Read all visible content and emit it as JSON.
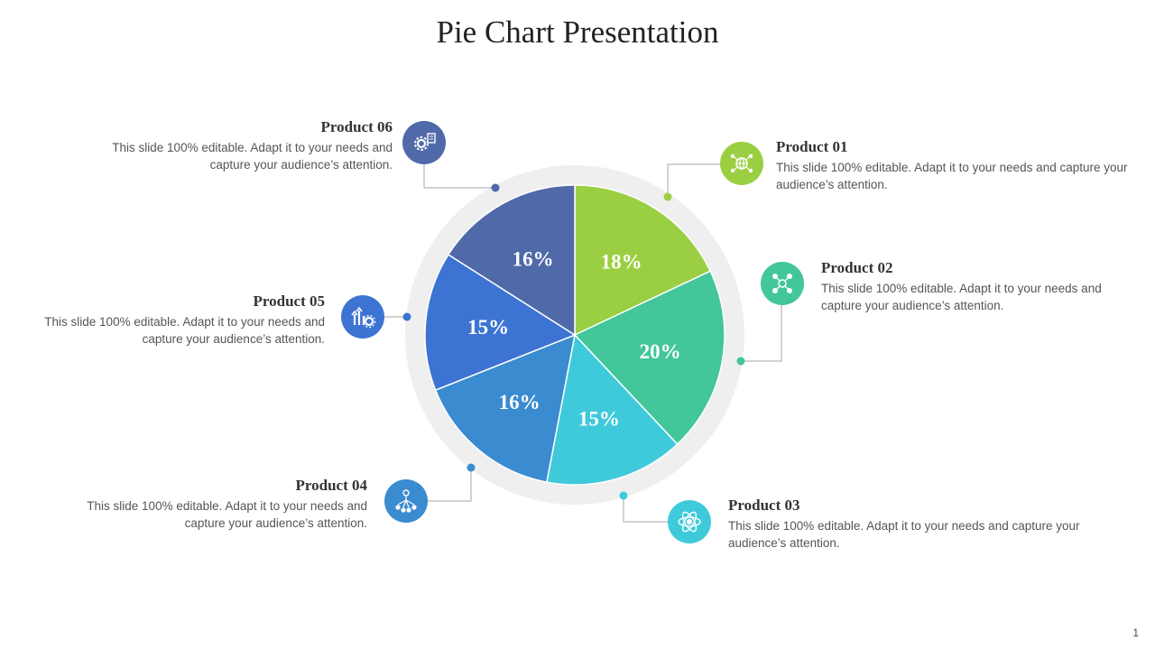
{
  "slide": {
    "title": "Pie Chart Presentation",
    "page_number": "1"
  },
  "colors": {
    "product_01": "#9BCF43",
    "product_02": "#42C69A",
    "product_03": "#3FCADB",
    "product_04": "#3A8BCF",
    "product_05": "#3D74D3",
    "product_06": "#4F69A9",
    "ring": "#EFEFEF",
    "connector": "#A6A6A6"
  },
  "products": [
    {
      "key": "p01",
      "title": "Product 01",
      "description": "This slide 100% editable. Adapt it to your needs and capture your audience’s attention.",
      "icon": "network-globe-icon"
    },
    {
      "key": "p02",
      "title": "Product 02",
      "description": "This slide 100% editable. Adapt it to your needs and capture your audience’s attention.",
      "icon": "team-network-icon"
    },
    {
      "key": "p03",
      "title": "Product 03",
      "description": "This slide 100% editable. Adapt it to your needs and capture your audience’s attention.",
      "icon": "atom-icon"
    },
    {
      "key": "p04",
      "title": "Product 04",
      "description": "This slide 100% editable. Adapt it to your needs and capture your audience’s attention.",
      "icon": "org-hierarchy-icon"
    },
    {
      "key": "p05",
      "title": "Product 05",
      "description": "This slide 100% editable. Adapt it to your needs and capture your audience’s attention.",
      "icon": "growth-gear-icon"
    },
    {
      "key": "p06",
      "title": "Product 06",
      "description": "This slide 100% editable. Adapt it to your needs and capture your audience’s attention.",
      "icon": "gear-document-icon"
    }
  ],
  "chart_data": {
    "type": "pie",
    "title": "Pie Chart Presentation",
    "start_angle": "top",
    "direction": "clockwise",
    "slices": [
      {
        "label": "Product 01",
        "value": 18,
        "display": "18%",
        "color": "#9BCF43"
      },
      {
        "label": "Product 02",
        "value": 20,
        "display": "20%",
        "color": "#42C69A"
      },
      {
        "label": "Product 03",
        "value": 15,
        "display": "15%",
        "color": "#3FCADB"
      },
      {
        "label": "Product 04",
        "value": 16,
        "display": "16%",
        "color": "#3A8BCF"
      },
      {
        "label": "Product 05",
        "value": 15,
        "display": "15%",
        "color": "#3D74D3"
      },
      {
        "label": "Product 06",
        "value": 16,
        "display": "16%",
        "color": "#4F69A9"
      }
    ]
  }
}
